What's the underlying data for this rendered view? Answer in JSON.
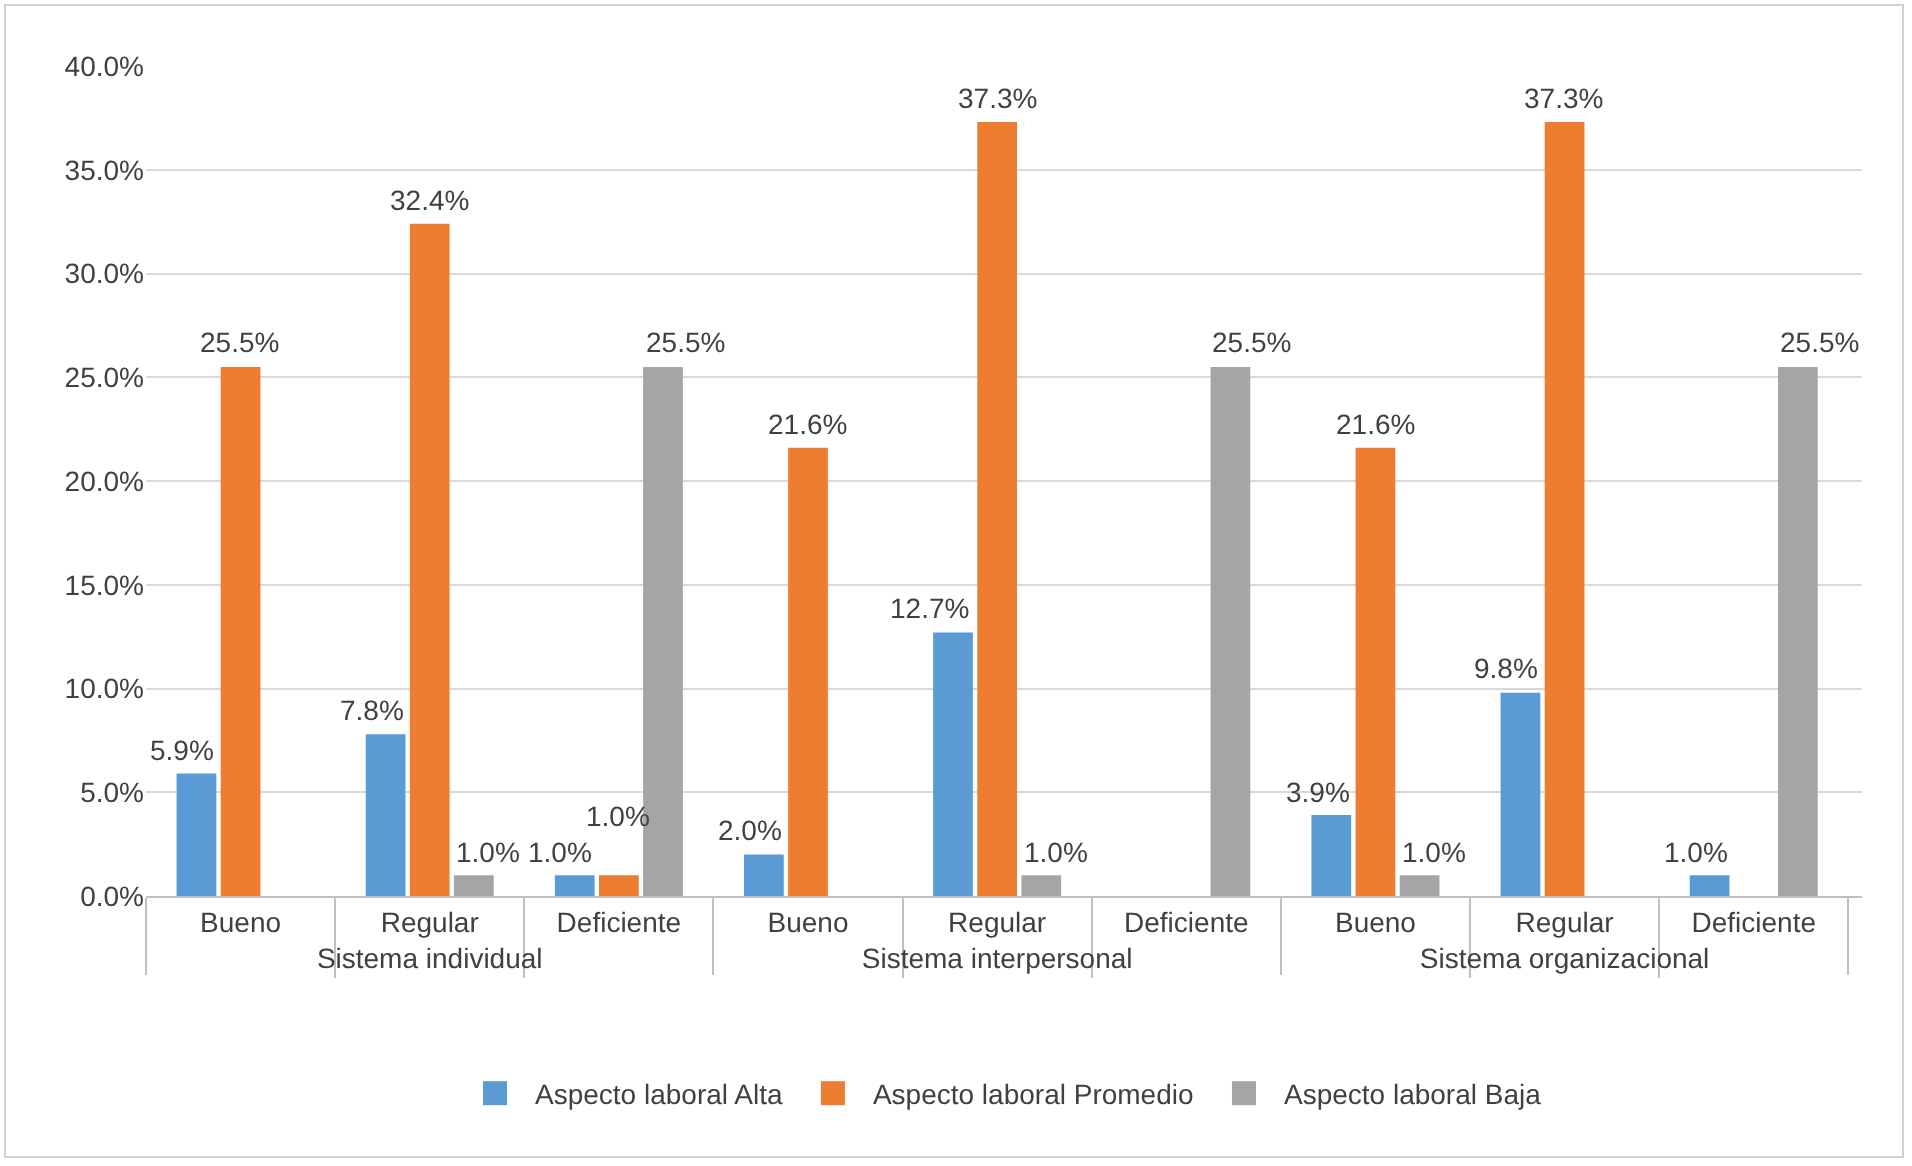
{
  "chart_data": {
    "type": "bar",
    "categories": [
      "Bueno",
      "Regular",
      "Deficiente",
      "Bueno",
      "Regular",
      "Deficiente",
      "Bueno",
      "Regular",
      "Deficiente"
    ],
    "annotations": [
      "Sistema individual",
      "Sistema interpersonal",
      "Sistema organizacional"
    ],
    "series": [
      {
        "name": "Aspecto laboral Alta",
        "color": "#5b9bd5",
        "values": [
          5.9,
          7.8,
          1.0,
          2.0,
          12.7,
          null,
          3.9,
          9.8,
          1.0
        ],
        "value_labels": [
          "5.9%",
          "7.8%",
          "1.0%",
          "2.0%",
          "12.7%",
          null,
          "3.9%",
          "9.8%",
          "1.0%"
        ]
      },
      {
        "name": "Aspecto laboral Promedio",
        "color": "#ed7d31",
        "values": [
          25.5,
          32.4,
          1.0,
          21.6,
          37.3,
          null,
          21.6,
          37.3,
          null
        ],
        "value_labels": [
          "25.5%",
          "32.4%",
          "1.0%",
          "21.6%",
          "37.3%",
          null,
          "21.6%",
          "37.3%",
          null
        ]
      },
      {
        "name": "Aspecto laboral Baja",
        "color": "#a5a5a5",
        "values": [
          null,
          1.0,
          25.5,
          null,
          1.0,
          25.5,
          1.0,
          null,
          25.5
        ],
        "value_labels": [
          null,
          "1.0%",
          "25.5%",
          null,
          "1.0%",
          "25.5%",
          "1.0%",
          null,
          "25.5%"
        ]
      }
    ],
    "ylim": [
      0,
      40
    ],
    "yticks": [
      {
        "value": 0,
        "label": "0.0%"
      },
      {
        "value": 5,
        "label": "5.0%"
      },
      {
        "value": 10,
        "label": "10.0%"
      },
      {
        "value": 15,
        "label": "15.0%"
      },
      {
        "value": 20,
        "label": "20.0%"
      },
      {
        "value": 25,
        "label": "25.0%"
      },
      {
        "value": 30,
        "label": "30.0%"
      },
      {
        "value": 35,
        "label": "35.0%"
      },
      {
        "value": 40,
        "label": "40.0%"
      }
    ],
    "grid": "y",
    "legend": "bottom"
  }
}
